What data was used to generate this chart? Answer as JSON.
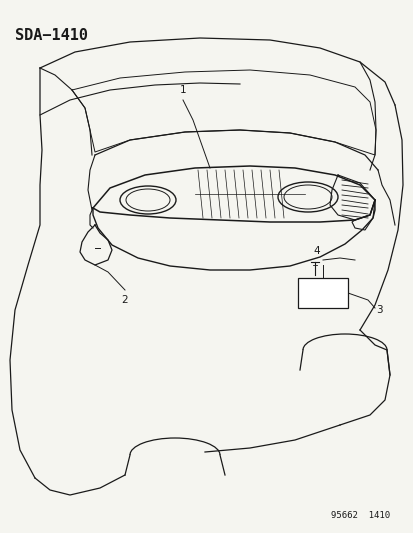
{
  "title": "SDA−1410",
  "footer": "95662  1410",
  "background_color": "#f5f5f0",
  "line_color": "#1a1a1a",
  "title_fontsize": 11,
  "footer_fontsize": 6.5,
  "callout_labels": [
    "1",
    "2",
    "3",
    "4"
  ]
}
